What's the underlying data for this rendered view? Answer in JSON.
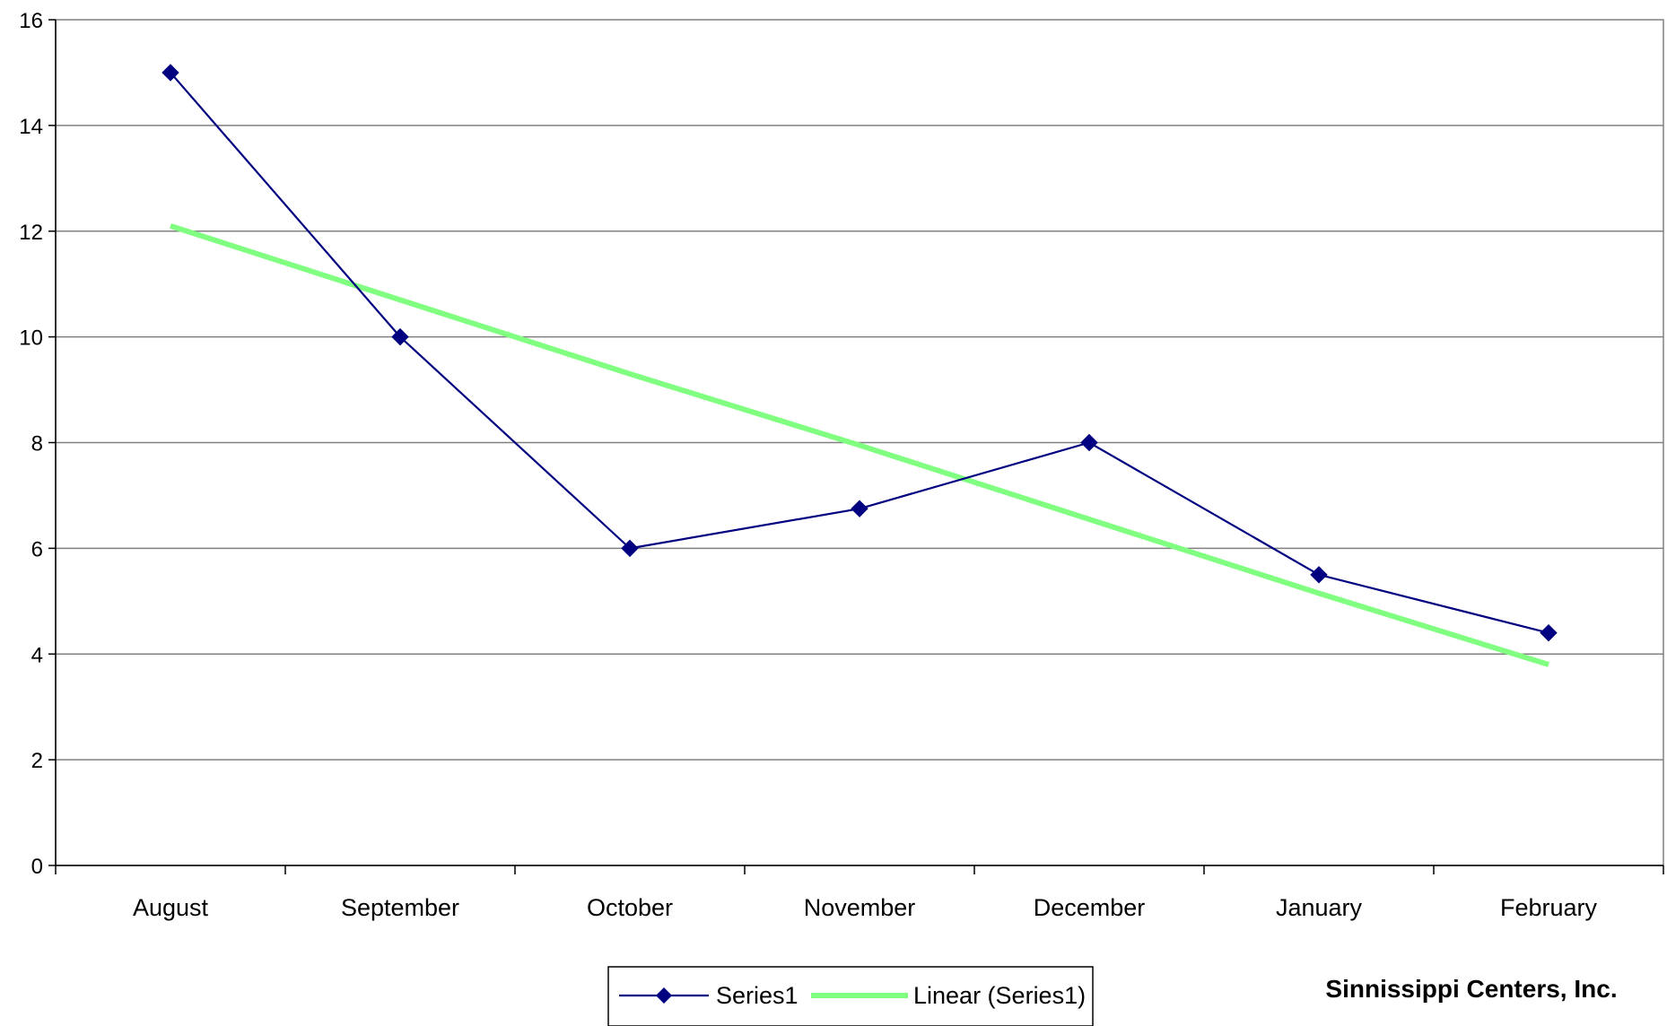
{
  "chart_data": {
    "type": "line",
    "categories": [
      "August",
      "September",
      "October",
      "November",
      "December",
      "January",
      "February"
    ],
    "series": [
      {
        "name": "Series1",
        "values": [
          15,
          10,
          6,
          6.75,
          8,
          5.5,
          4.4
        ],
        "color": "#000080",
        "marker": "diamond"
      },
      {
        "name": "Linear (Series1)",
        "values": [
          12.1,
          10.7,
          9.3,
          7.95,
          6.55,
          5.15,
          3.8
        ],
        "color": "#80ff80",
        "marker": "none"
      }
    ],
    "y_ticks": [
      "0",
      "2",
      "4",
      "6",
      "8",
      "10",
      "12",
      "14",
      "16"
    ],
    "ylim": [
      0,
      16
    ],
    "grid": true,
    "legend": "bottom-center",
    "footer": "Sinnissippi Centers, Inc."
  }
}
